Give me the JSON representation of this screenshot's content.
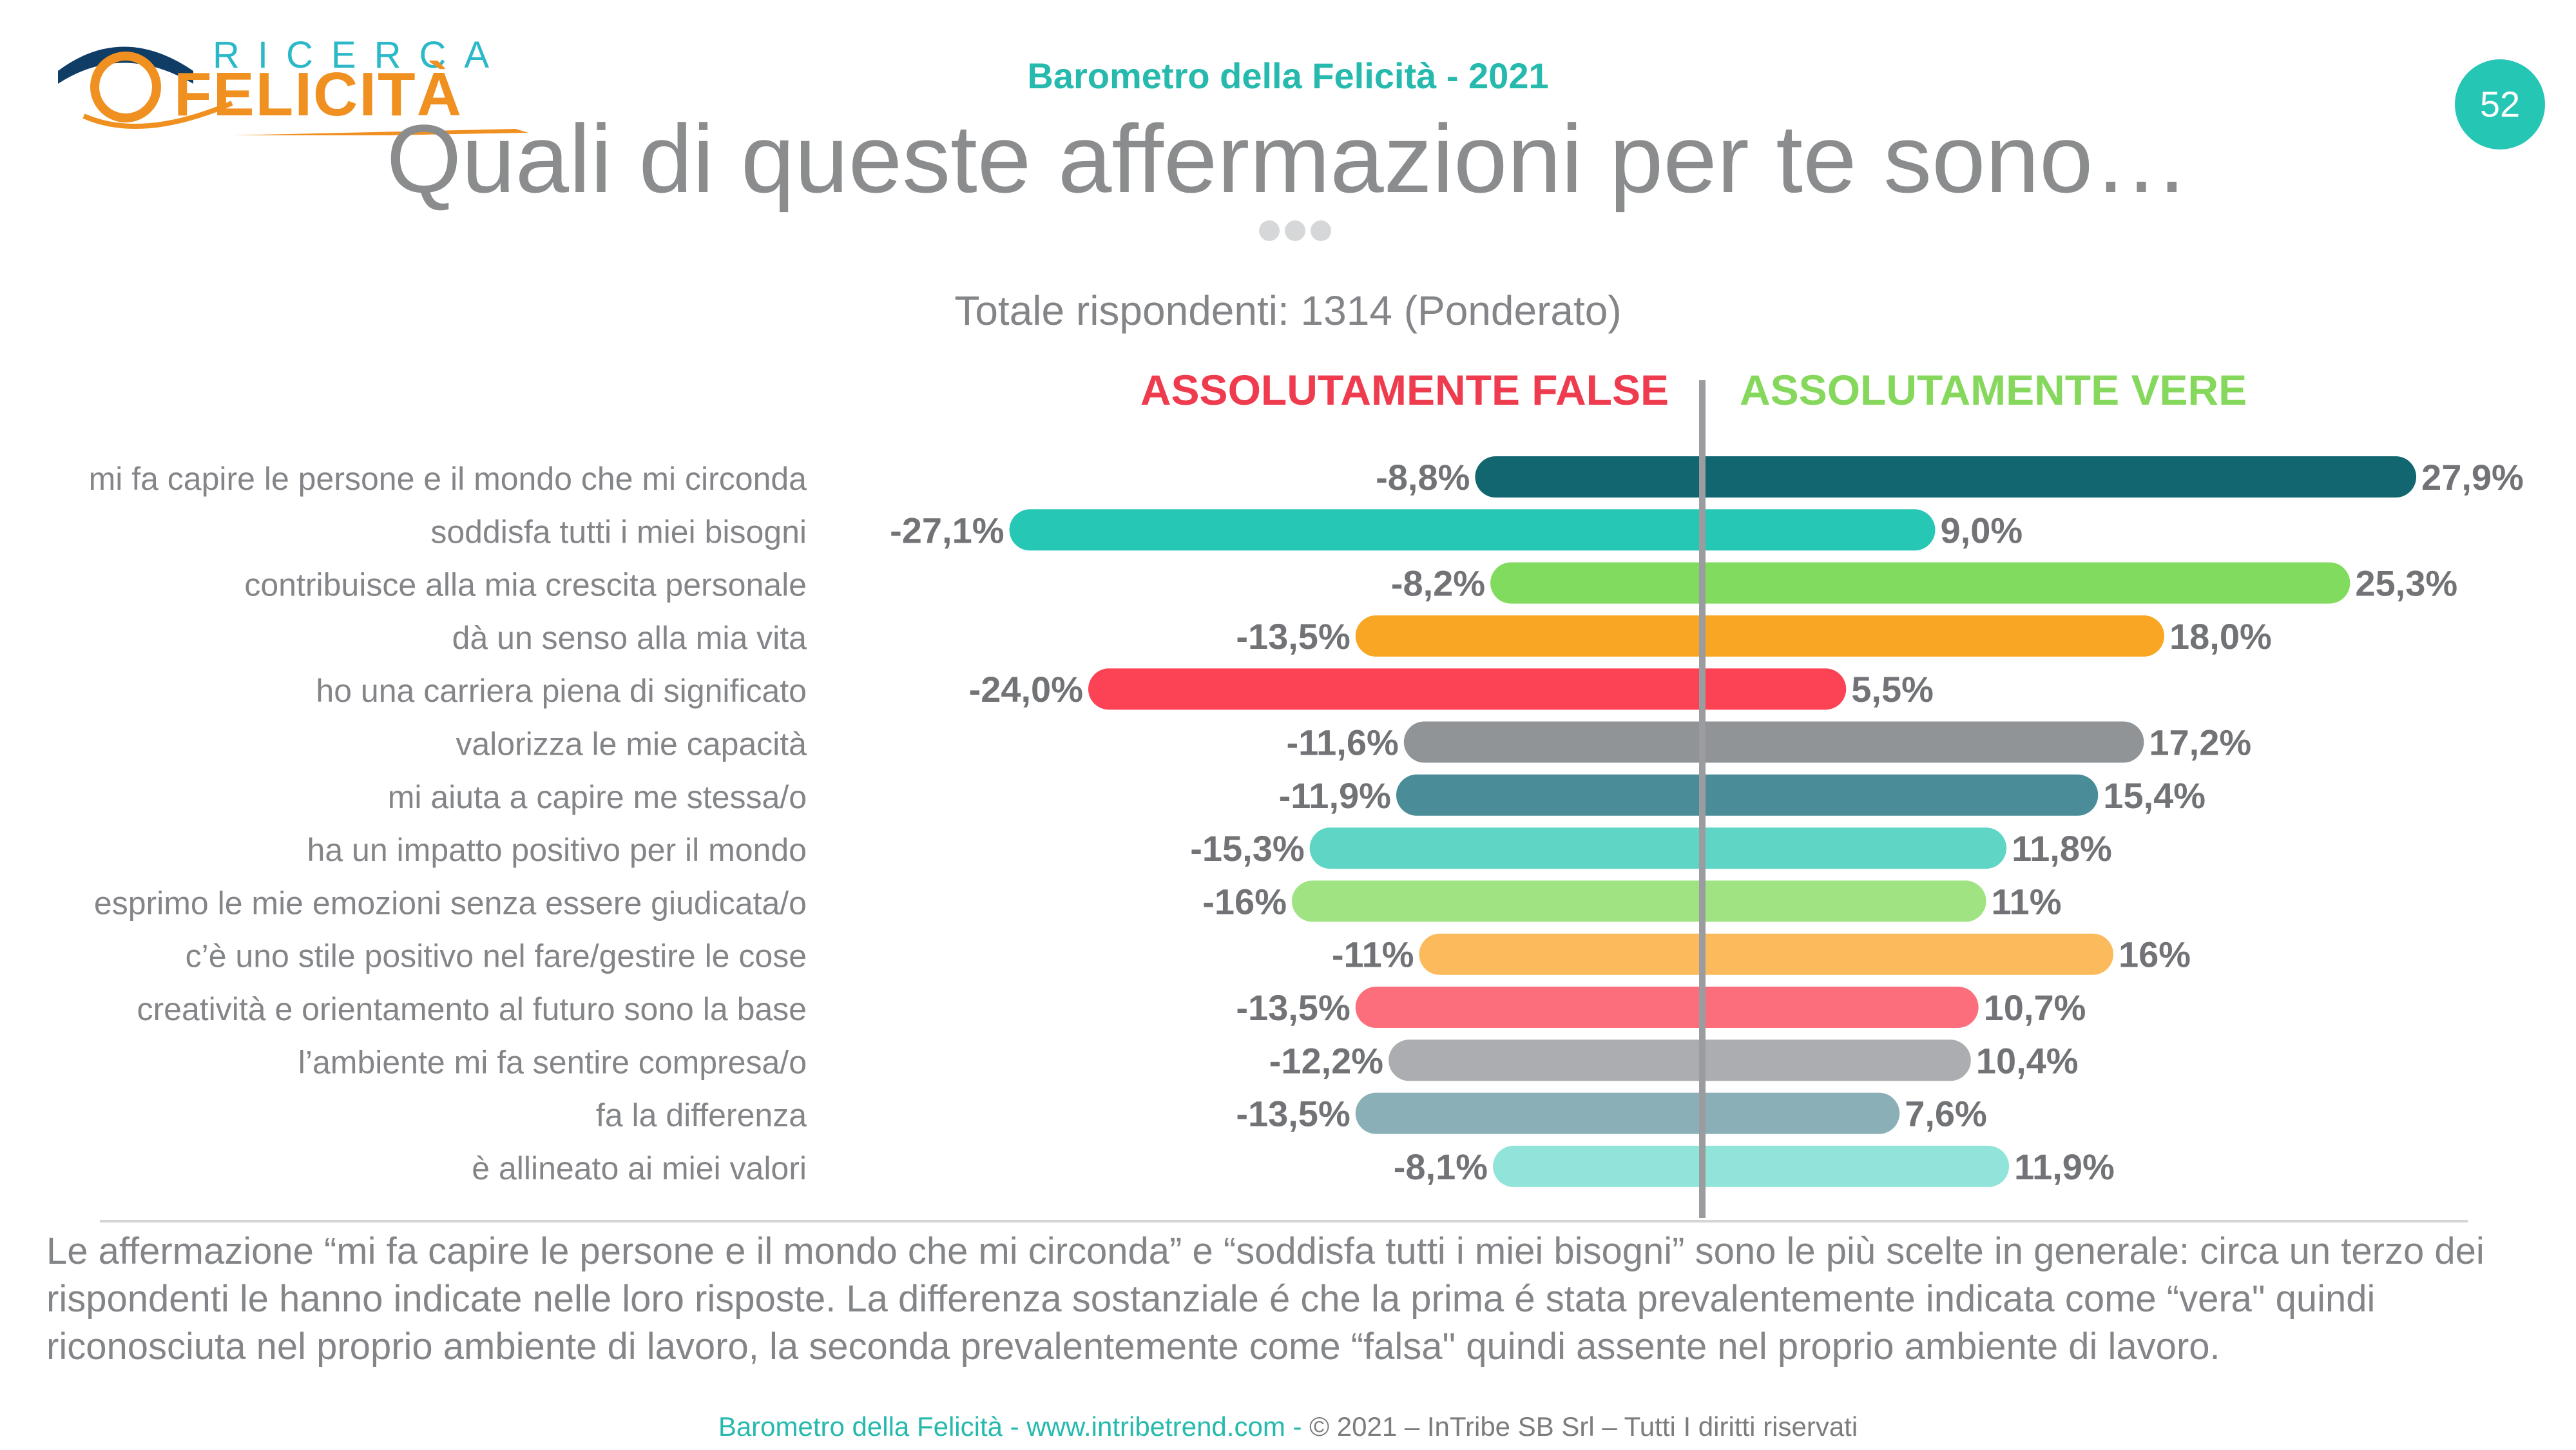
{
  "brand": {
    "top": "RICERCA",
    "bottom": "FELICITÀ"
  },
  "header": {
    "subtitle": "Barometro della Felicità - 2021",
    "page_number": "52"
  },
  "title": "Quali di queste affermazioni per te sono…",
  "respondents": "Totale rispondenti: 1314 (Ponderato)",
  "chart_data": {
    "type": "bar",
    "orientation": "horizontal-diverging",
    "left_header": "ASSOLUTAMENTE FALSE",
    "right_header": "ASSOLUTAMENTE VERE",
    "categories": [
      "mi fa capire le persone e il mondo che mi circonda",
      "soddisfa tutti i miei bisogni",
      "contribuisce alla mia crescita personale",
      "dà un senso alla mia vita",
      "ho una carriera piena di significato",
      "valorizza le mie capacità",
      "mi aiuta a capire me stessa/o",
      "ha un impatto positivo per il mondo",
      "esprimo le mie emozioni senza essere giudicata/o",
      "c’è uno stile positivo nel fare/gestire le cose",
      "creatività e orientamento al futuro sono la base",
      "l’ambiente mi fa sentire compresa/o",
      "fa la differenza",
      "è allineato ai miei valori"
    ],
    "series": [
      {
        "name": "ASSOLUTAMENTE FALSE",
        "values": [
          -8.8,
          -27.1,
          -8.2,
          -13.5,
          -24.0,
          -11.6,
          -11.9,
          -15.3,
          -16,
          -11,
          -13.5,
          -12.2,
          -13.5,
          -8.1
        ],
        "labels": [
          "-8,8%",
          "-27,1%",
          "-8,2%",
          "-13,5%",
          "-24,0%",
          "-11,6%",
          "-11,9%",
          "-15,3%",
          "-16%",
          "-11%",
          "-13,5%",
          "-12,2%",
          "-13,5%",
          "-8,1%"
        ]
      },
      {
        "name": "ASSOLUTAMENTE VERE",
        "values": [
          27.9,
          9.0,
          25.3,
          18.0,
          5.5,
          17.2,
          15.4,
          11.8,
          11,
          16,
          10.7,
          10.4,
          7.6,
          11.9
        ],
        "labels": [
          "27,9%",
          "9,0%",
          "25,3%",
          "18,0%",
          "5,5%",
          "17,2%",
          "15,4%",
          "11,8%",
          "11%",
          "16%",
          "10,7%",
          "10,4%",
          "7,6%",
          "11,9%"
        ]
      }
    ],
    "colors": [
      "#12666f",
      "#27c7b6",
      "#80db5e",
      "#f8a623",
      "#fc4356",
      "#909497",
      "#4a8c97",
      "#5fd6c5",
      "#a0e383",
      "#fbbb5c",
      "#fc6e7c",
      "#abadb0",
      "#8aafb6",
      "#91e4d9"
    ],
    "left_header_color": "#ef3b4e",
    "right_header_color": "#86d85d"
  },
  "note": "Le affermazione “mi fa capire le persone e il mondo che mi circonda” e “soddisfa tutti i miei bisogni” sono le più scelte in generale: circa un terzo dei rispondenti le hanno indicate nelle loro risposte. La differenza sostanziale é che la prima é stata prevalentemente indicata come “vera\" quindi riconosciuta nel proprio ambiente di lavoro, la seconda prevalentemente come “falsa\" quindi assente nel proprio ambiente di lavoro.",
  "footer": {
    "part1": "Barometro della Felicità - www.intribetrend.com",
    "separator": " - ",
    "part2": "© 2021 – InTribe SB Srl – Tutti I diritti riservati"
  }
}
